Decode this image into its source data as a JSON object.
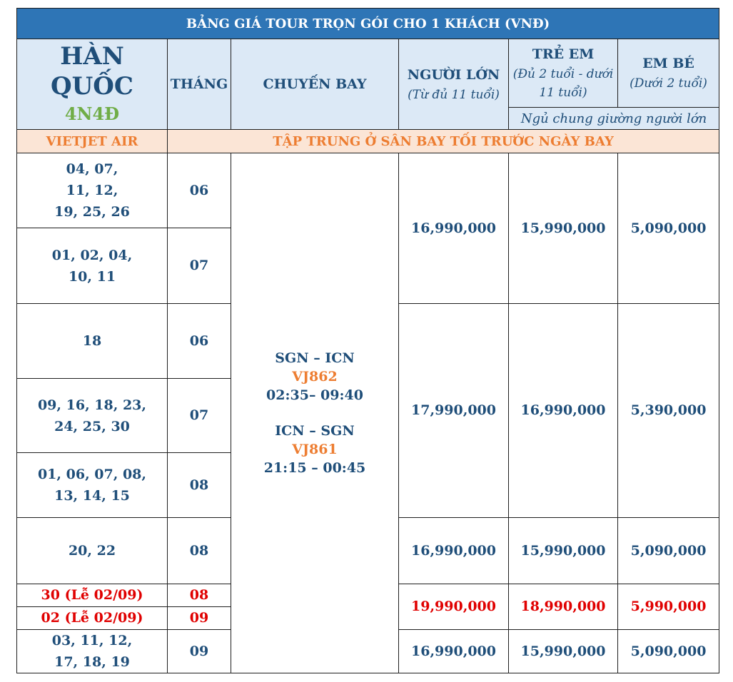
{
  "header": {
    "title": "BẢNG GIÁ TOUR TRỌN GÓI CHO 1 KHÁCH (VNĐ)",
    "country": "HÀN QUỐC",
    "duration": "4N4Đ",
    "month_col": "THÁNG",
    "flight_col": "CHUYẾN BAY",
    "adult_col": "NGƯỜI LỚN",
    "adult_sub": "(Từ đủ 11 tuổi)",
    "child_col": "TRẺ EM",
    "child_sub": "(Đủ 2 tuổi - dưới 11 tuổi)",
    "infant_col": "EM BÉ",
    "infant_sub": "(Dưới 2 tuổi)",
    "shared_bed_note": "Ngủ chung giường người lớn"
  },
  "airline_row": {
    "airline": "VIETJET AIR",
    "meeting_note": "TẬP TRUNG Ở SÂN BAY TỐI TRƯỚC NGÀY BAY"
  },
  "flight": {
    "outbound_route": "SGN – ICN",
    "outbound_code": "VJ862",
    "outbound_time": "02:35– 09:40",
    "return_route": "ICN – SGN",
    "return_code": "VJ861",
    "return_time": "21:15 – 00:45"
  },
  "rows": [
    {
      "dates": "04, 07, 11, 12, 19, 25, 26",
      "month": "06"
    },
    {
      "dates": "01, 02, 04, 10, 11",
      "month": "07"
    },
    {
      "dates": "18",
      "month": "06"
    },
    {
      "dates": "09, 16, 18, 23, 24, 25, 30",
      "month": "07"
    },
    {
      "dates": "01, 06, 07, 08, 13, 14, 15",
      "month": "08"
    },
    {
      "dates": "20, 22",
      "month": "08"
    },
    {
      "dates": "30 (Lễ 02/09)",
      "month": "08"
    },
    {
      "dates": "02 (Lễ 02/09)",
      "month": "09"
    },
    {
      "dates": "03, 11, 12, 17, 18, 19",
      "month": "09"
    }
  ],
  "prices": [
    {
      "adult": "16,990,000",
      "child": "15,990,000",
      "infant": "5,090,000"
    },
    {
      "adult": "17,990,000",
      "child": "16,990,000",
      "infant": "5,390,000"
    },
    {
      "adult": "16,990,000",
      "child": "15,990,000",
      "infant": "5,090,000"
    },
    {
      "adult": "19,990,000",
      "child": "18,990,000",
      "infant": "5,990,000"
    },
    {
      "adult": "16,990,000",
      "child": "15,990,000",
      "infant": "5,090,000"
    }
  ],
  "colors": {
    "title_bg": "#2e75b6",
    "header_bg": "#dce9f6",
    "airline_bg": "#fbe5d6",
    "text_blue": "#1f4e79",
    "accent_orange": "#ed7d31",
    "accent_green": "#70ad47",
    "holiday_red": "#e00000"
  }
}
